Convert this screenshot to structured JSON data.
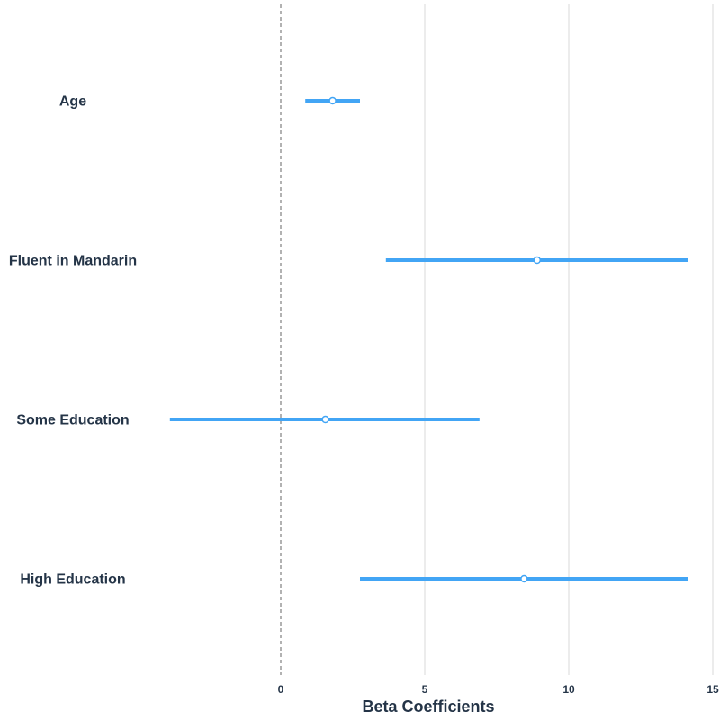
{
  "chart_data": {
    "type": "forest",
    "title": "",
    "xlabel": "Beta Coefficients",
    "ylabel": "",
    "xlim": [
      -4,
      15
    ],
    "xticks": [
      0,
      5,
      10,
      15
    ],
    "grid": "vertical",
    "reference_line": 0,
    "categories": [
      "Age",
      "Fluent in Mandarin",
      "Some Education",
      "High Education"
    ],
    "estimates": [
      1.8,
      8.9,
      1.55,
      8.45
    ],
    "ci_low": [
      0.85,
      3.65,
      -3.85,
      2.75
    ],
    "ci_high": [
      2.75,
      14.15,
      6.9,
      14.15
    ],
    "colors": {
      "interval": "#42a5f5",
      "point_stroke": "#42a5f5",
      "point_fill": "#ffffff",
      "reference_line": "#999999",
      "grid": "#e6e6e6",
      "text": "#243447"
    }
  }
}
